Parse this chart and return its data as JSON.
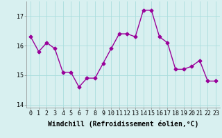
{
  "x": [
    0,
    1,
    2,
    3,
    4,
    5,
    6,
    7,
    8,
    9,
    10,
    11,
    12,
    13,
    14,
    15,
    16,
    17,
    18,
    19,
    20,
    21,
    22,
    23
  ],
  "y": [
    16.3,
    15.8,
    16.1,
    15.9,
    15.1,
    15.1,
    14.6,
    14.9,
    14.9,
    15.4,
    15.9,
    16.4,
    16.4,
    16.3,
    17.2,
    17.2,
    16.3,
    16.1,
    15.2,
    15.2,
    15.3,
    15.5,
    14.8,
    14.8
  ],
  "line_color": "#990099",
  "marker": "D",
  "markersize": 2.5,
  "linewidth": 1.0,
  "bg_color": "#d8f0f0",
  "grid_color": "#aadddd",
  "xlabel": "Windchill (Refroidissement éolien,°C)",
  "xlabel_fontsize": 7,
  "tick_fontsize": 6,
  "ylim": [
    13.9,
    17.5
  ],
  "yticks": [
    14,
    15,
    16,
    17
  ],
  "xticks": [
    0,
    1,
    2,
    3,
    4,
    5,
    6,
    7,
    8,
    9,
    10,
    11,
    12,
    13,
    14,
    15,
    16,
    17,
    18,
    19,
    20,
    21,
    22,
    23
  ]
}
